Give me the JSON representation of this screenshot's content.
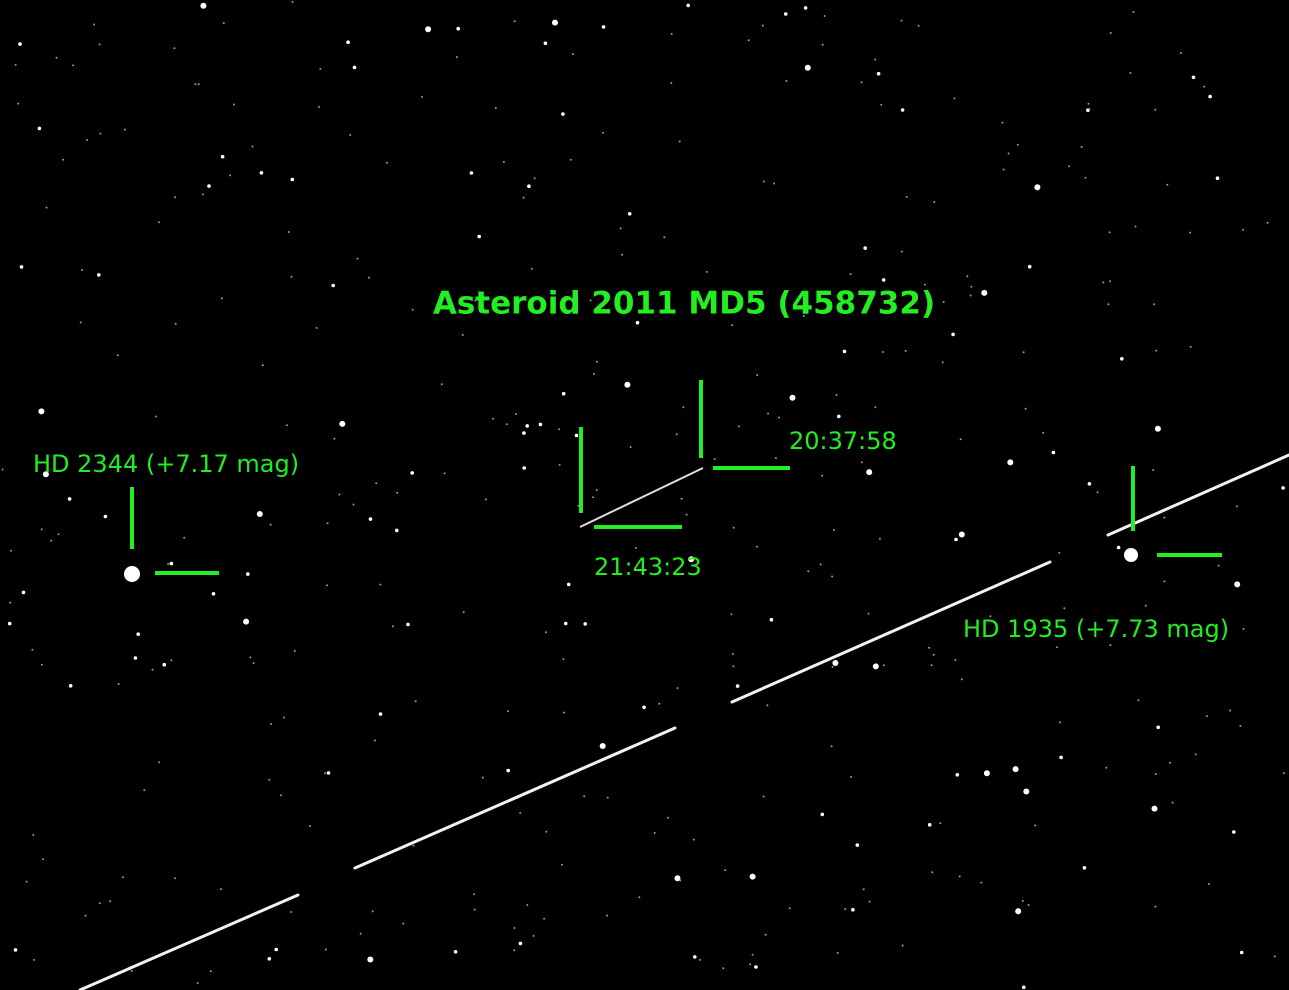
{
  "title": "Asteroid 2011 MD5 (458732)",
  "stars": [
    {
      "label": "HD 2344 (+7.17 mag)"
    },
    {
      "label": "HD 1935 (+7.73 mag)"
    }
  ],
  "times": [
    "20:37:58",
    "21:43:23"
  ]
}
